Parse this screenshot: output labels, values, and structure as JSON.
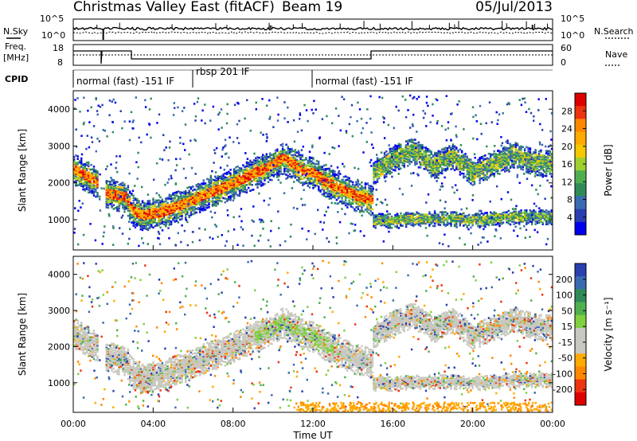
{
  "header": {
    "title": "Christmas Valley East (fitACF)",
    "beam": "Beam 19",
    "date": "05/Jul/2013"
  },
  "labels": {
    "nsky": "N.Sky",
    "nsearch": "N.Search",
    "freq": "Freq.",
    "freq_unit": "[MHz]",
    "nave": "Nave",
    "cpid": "CPID",
    "nsky_ticks": [
      "10^5",
      "10^0"
    ],
    "nsearch_ticks": [
      "10^5",
      "10^0"
    ],
    "freq_ticks": [
      "18",
      "8"
    ],
    "nave_ticks": [
      "60",
      "0"
    ]
  },
  "cpid_segments": [
    {
      "start": 0,
      "label": "normal (fast) -151 IF"
    },
    {
      "start": 6,
      "label": "rbsp 201 IF"
    },
    {
      "start": 12,
      "label": "normal (fast) -151 IF"
    }
  ],
  "chart_data": [
    {
      "type": "heatmap",
      "panel": "power",
      "ylabel": "Slant Range [km]",
      "xlim": [
        0,
        24
      ],
      "ylim": [
        180,
        4500
      ],
      "yticks": [
        1000,
        2000,
        3000,
        4000
      ],
      "colorbar_label": "Power [dB]",
      "colorbar_ticks": [
        "28",
        "24",
        "20",
        "16",
        "12",
        "8",
        "4"
      ],
      "colorbar_colors": [
        "#dd0000",
        "#ee3311",
        "#ff8800",
        "#ffaa00",
        "#f5c800",
        "#a0d030",
        "#50b050",
        "#2e8b57",
        "#3a6bb0",
        "#2a3fb0",
        "#0000ee"
      ],
      "bands": [
        {
          "t": [
            0.0,
            0.5,
            1.0,
            1.4,
            1.6,
            2.0,
            2.6,
            3.0,
            3.5,
            4.5,
            5.5,
            6.5,
            7.5,
            8.5,
            9.5,
            10.5,
            11.0,
            11.5,
            12.0,
            12.5,
            13.0,
            14.0,
            15.0
          ],
          "r": [
            2400,
            2250,
            2100,
            1950,
            1750,
            1700,
            1650,
            1250,
            1150,
            1250,
            1450,
            1700,
            1900,
            2150,
            2400,
            2700,
            2550,
            2350,
            2300,
            2100,
            1950,
            1700,
            1550
          ],
          "w": 260,
          "level": "high"
        },
        {
          "t": [
            15.0,
            16.0,
            17.0,
            18.0,
            19.0,
            20.0,
            21.0,
            22.0,
            23.0,
            24.0
          ],
          "r": [
            1000,
            1000,
            1050,
            1050,
            1050,
            1000,
            1050,
            1100,
            1100,
            1100
          ],
          "w": 120,
          "level": "mid"
        },
        {
          "t": [
            15.0,
            16.0,
            17.0,
            18.0,
            19.0,
            20.0,
            21.0,
            22.0,
            23.0,
            24.0
          ],
          "r": [
            2300,
            2700,
            2900,
            2500,
            2750,
            2300,
            2550,
            2800,
            2600,
            2550
          ],
          "w": 220,
          "level": "mid"
        }
      ]
    },
    {
      "type": "heatmap",
      "panel": "velocity",
      "xlabel": "Time UT",
      "ylabel": "Slant Range [km]",
      "xlim": [
        0,
        24
      ],
      "ylim": [
        180,
        4500
      ],
      "xticks": [
        "00:00",
        "04:00",
        "08:00",
        "12:00",
        "16:00",
        "20:00",
        "00:00"
      ],
      "yticks": [
        1000,
        2000,
        3000,
        4000
      ],
      "colorbar_label": "Velocity [m s⁻¹]",
      "colorbar_ticks": [
        "200",
        "100",
        "50",
        "15",
        "-15",
        "-50",
        "-100",
        "-200"
      ],
      "colorbar_colors": [
        "#2a3fb0",
        "#3a6bb0",
        "#2e8b57",
        "#50b050",
        "#80d040",
        "#c8c8c0",
        "#c8c8c0",
        "#ffaa00",
        "#ff8800",
        "#ee3311",
        "#dd0000"
      ]
    }
  ],
  "colors": {
    "ground_scatter": "#c8c8c0",
    "frame": "#000000"
  }
}
